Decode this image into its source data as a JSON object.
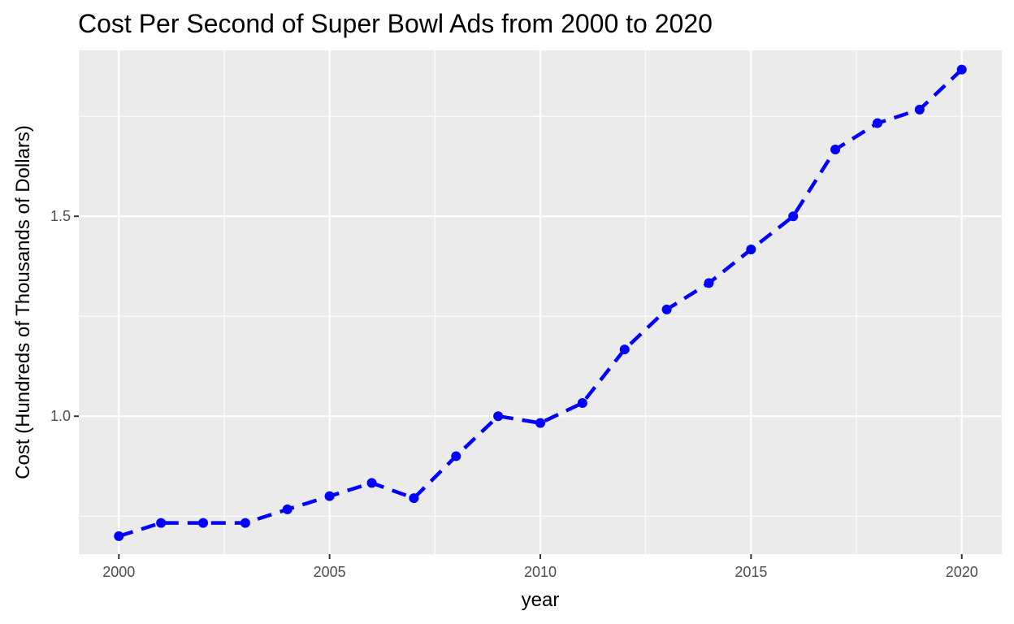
{
  "chart_data": {
    "type": "line",
    "title": "Cost Per Second of Super Bowl Ads from 2000 to 2020",
    "xlabel": "year",
    "ylabel": "Cost (Hundreds of Thousands of Dollars)",
    "xlim": [
      1999.05,
      2020.95
    ],
    "ylim": [
      0.655,
      1.915
    ],
    "x_ticks": [
      2000,
      2005,
      2010,
      2015,
      2020
    ],
    "x_tick_labels": [
      "2000",
      "2005",
      "2010",
      "2015",
      "2020"
    ],
    "y_ticks": [
      1.0,
      1.5
    ],
    "y_tick_labels": [
      "1.0",
      "1.5"
    ],
    "grid": true,
    "line_style": "dashed",
    "series": [
      {
        "name": "cost",
        "x": [
          2000,
          2001,
          2002,
          2003,
          2004,
          2005,
          2006,
          2007,
          2008,
          2009,
          2010,
          2011,
          2012,
          2013,
          2014,
          2015,
          2016,
          2017,
          2018,
          2019,
          2020
        ],
        "values": [
          0.7,
          0.733,
          0.733,
          0.733,
          0.767,
          0.8,
          0.833,
          0.795,
          0.9,
          1.0,
          0.983,
          1.033,
          1.167,
          1.267,
          1.333,
          1.417,
          1.5,
          1.667,
          1.733,
          1.767,
          1.867
        ]
      }
    ],
    "colors": {
      "panel": "#ebebeb",
      "grid": "#ffffff",
      "line": "#0000ff",
      "tick": "#333333"
    }
  }
}
